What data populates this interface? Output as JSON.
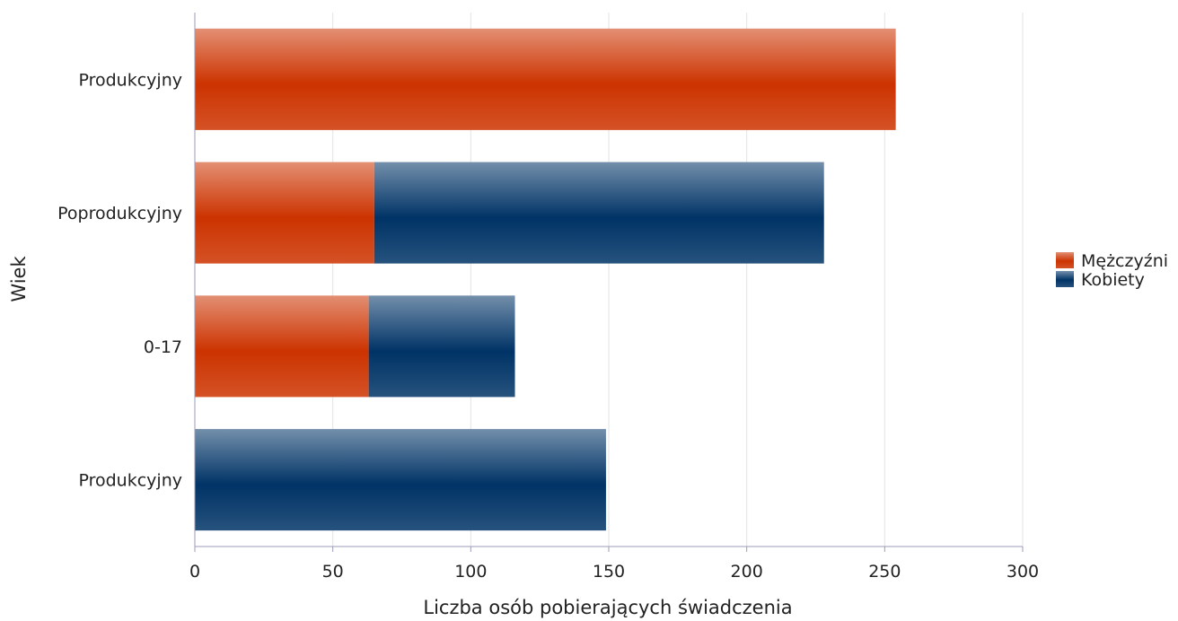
{
  "chart_data": {
    "type": "bar",
    "orientation": "horizontal",
    "stacked": true,
    "title": "",
    "xlabel": "Liczba osób pobierających świadczenia",
    "ylabel": "Wiek",
    "categories": [
      "Produkcyjny",
      "Poprodukcyjny",
      "0-17",
      "Produkcyjny"
    ],
    "series": [
      {
        "name": "Mężczyźni",
        "color": "#cc3300",
        "values": [
          254,
          65,
          63,
          0
        ]
      },
      {
        "name": "Kobiety",
        "color": "#003366",
        "values": [
          0,
          163,
          53,
          149
        ]
      }
    ],
    "xlim": [
      0,
      300
    ],
    "xticks": [
      "0",
      "50",
      "100",
      "150",
      "200",
      "250",
      "300"
    ],
    "grid": true,
    "legend_position": "right"
  }
}
